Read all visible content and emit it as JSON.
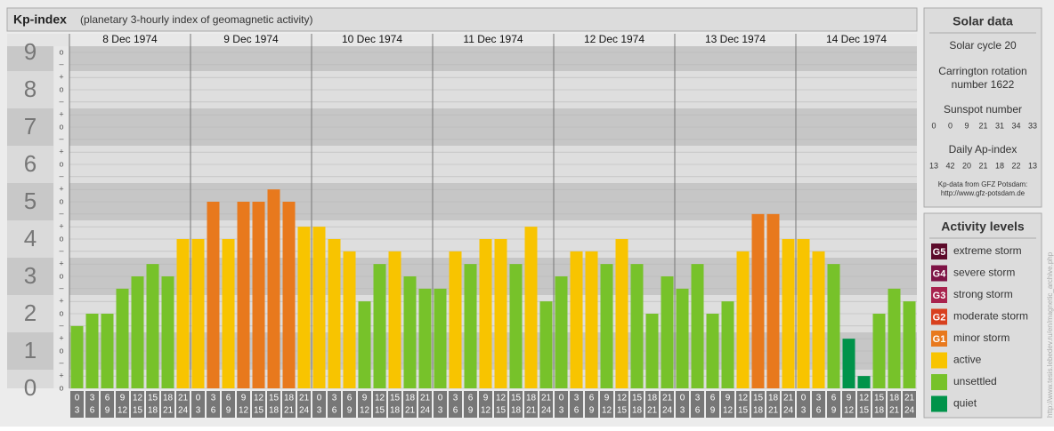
{
  "chart_data": {
    "type": "bar",
    "title": "Kp-index",
    "subtitle": "(planetary 3-hourly index of geomagnetic activity)",
    "days": [
      "8 Dec 1974",
      "9 Dec 1974",
      "10 Dec 1974",
      "11 Dec 1974",
      "12 Dec 1974",
      "13 Dec 1974",
      "14 Dec 1974"
    ],
    "intervals": [
      {
        "from": "0",
        "to": "3"
      },
      {
        "from": "3",
        "to": "6"
      },
      {
        "from": "6",
        "to": "9"
      },
      {
        "from": "9",
        "to": "12"
      },
      {
        "from": "12",
        "to": "15"
      },
      {
        "from": "15",
        "to": "18"
      },
      {
        "from": "18",
        "to": "21"
      },
      {
        "from": "21",
        "to": "24"
      }
    ],
    "values": [
      1.67,
      2,
      2,
      2.67,
      3,
      3.33,
      3,
      4,
      4,
      5,
      4,
      5,
      5,
      5.33,
      5,
      4.33,
      4.33,
      4,
      3.67,
      2.33,
      3.33,
      3.67,
      3,
      2.67,
      2.67,
      3.67,
      3.33,
      4,
      4,
      3.33,
      4.33,
      2.33,
      3,
      3.67,
      3.67,
      3.33,
      4,
      3.33,
      2,
      3,
      2.67,
      3.33,
      2,
      2.33,
      3.67,
      4.67,
      4.67,
      4,
      4,
      3.67,
      3.33,
      1.33,
      0.33,
      2,
      2.67,
      2.33
    ],
    "colors": [
      "#77c22a",
      "#77c22a",
      "#77c22a",
      "#77c22a",
      "#77c22a",
      "#77c22a",
      "#77c22a",
      "#f8c400",
      "#f8c400",
      "#e8791d",
      "#f8c400",
      "#e8791d",
      "#e8791d",
      "#e8791d",
      "#e8791d",
      "#f8c400",
      "#f8c400",
      "#f8c400",
      "#f8c400",
      "#77c22a",
      "#77c22a",
      "#f8c400",
      "#77c22a",
      "#77c22a",
      "#77c22a",
      "#f8c400",
      "#77c22a",
      "#f8c400",
      "#f8c400",
      "#77c22a",
      "#f8c400",
      "#77c22a",
      "#77c22a",
      "#f8c400",
      "#f8c400",
      "#77c22a",
      "#f8c400",
      "#77c22a",
      "#77c22a",
      "#77c22a",
      "#77c22a",
      "#77c22a",
      "#77c22a",
      "#77c22a",
      "#f8c400",
      "#e8791d",
      "#e8791d",
      "#f8c400",
      "#f8c400",
      "#f8c400",
      "#77c22a",
      "#00934a",
      "#00934a",
      "#77c22a",
      "#77c22a",
      "#77c22a"
    ],
    "ylim": [
      0,
      9
    ],
    "yticks": [
      0,
      1,
      2,
      3,
      4,
      5,
      6,
      7,
      8,
      9
    ],
    "minor_ticks": [
      {
        "value": 9,
        "label": "o"
      },
      {
        "value": 8.67,
        "label": "–"
      },
      {
        "value": 8.33,
        "label": "+"
      },
      {
        "value": 8,
        "label": "o"
      },
      {
        "value": 7.67,
        "label": "–"
      },
      {
        "value": 7.33,
        "label": "+"
      },
      {
        "value": 7,
        "label": "o"
      },
      {
        "value": 6.67,
        "label": "–"
      },
      {
        "value": 6.33,
        "label": "+"
      },
      {
        "value": 6,
        "label": "o"
      },
      {
        "value": 5.67,
        "label": "–"
      },
      {
        "value": 5.33,
        "label": "+"
      },
      {
        "value": 5,
        "label": "o"
      },
      {
        "value": 4.67,
        "label": "–"
      },
      {
        "value": 4.33,
        "label": "+"
      },
      {
        "value": 4,
        "label": "o"
      },
      {
        "value": 3.67,
        "label": "–"
      },
      {
        "value": 3.33,
        "label": "+"
      },
      {
        "value": 3,
        "label": "o"
      },
      {
        "value": 2.67,
        "label": "–"
      },
      {
        "value": 2.33,
        "label": "+"
      },
      {
        "value": 2,
        "label": "o"
      },
      {
        "value": 1.67,
        "label": "–"
      },
      {
        "value": 1.33,
        "label": "+"
      },
      {
        "value": 1,
        "label": "o"
      },
      {
        "value": 0.67,
        "label": "–"
      },
      {
        "value": 0.33,
        "label": "+"
      },
      {
        "value": 0,
        "label": "o"
      }
    ],
    "grid": true
  },
  "solar": {
    "title": "Solar data",
    "cycle": "Solar cycle 20",
    "rotation_1": "Carrington rotation",
    "rotation_2": "number 1622",
    "sunspot_title": "Sunspot number",
    "sunspots": [
      0,
      0,
      9,
      21,
      31,
      34,
      33
    ],
    "ap_title": "Daily Ap-index",
    "ap": [
      13,
      42,
      20,
      21,
      18,
      22,
      13
    ],
    "source": "Kp-data from GFZ Potsdam:",
    "url": "http://www.gfz-potsdam.de"
  },
  "levels": {
    "title": "Activity levels",
    "items": [
      {
        "code": "G5",
        "label": "extreme storm",
        "color": "#5c0a2a"
      },
      {
        "code": "G4",
        "label": "severe storm",
        "color": "#7e1446"
      },
      {
        "code": "G3",
        "label": "strong storm",
        "color": "#a8234e"
      },
      {
        "code": "G2",
        "label": "moderate storm",
        "color": "#d8401e"
      },
      {
        "code": "G1",
        "label": "minor storm",
        "color": "#e8791d"
      },
      {
        "label": "active",
        "color": "#f8c400"
      },
      {
        "label": "unsettled",
        "color": "#77c22a"
      },
      {
        "label": "quiet",
        "color": "#00934a"
      }
    ]
  },
  "source_url": "http://www.tesis.lebedev.ru/en/magnetic_archive.php"
}
